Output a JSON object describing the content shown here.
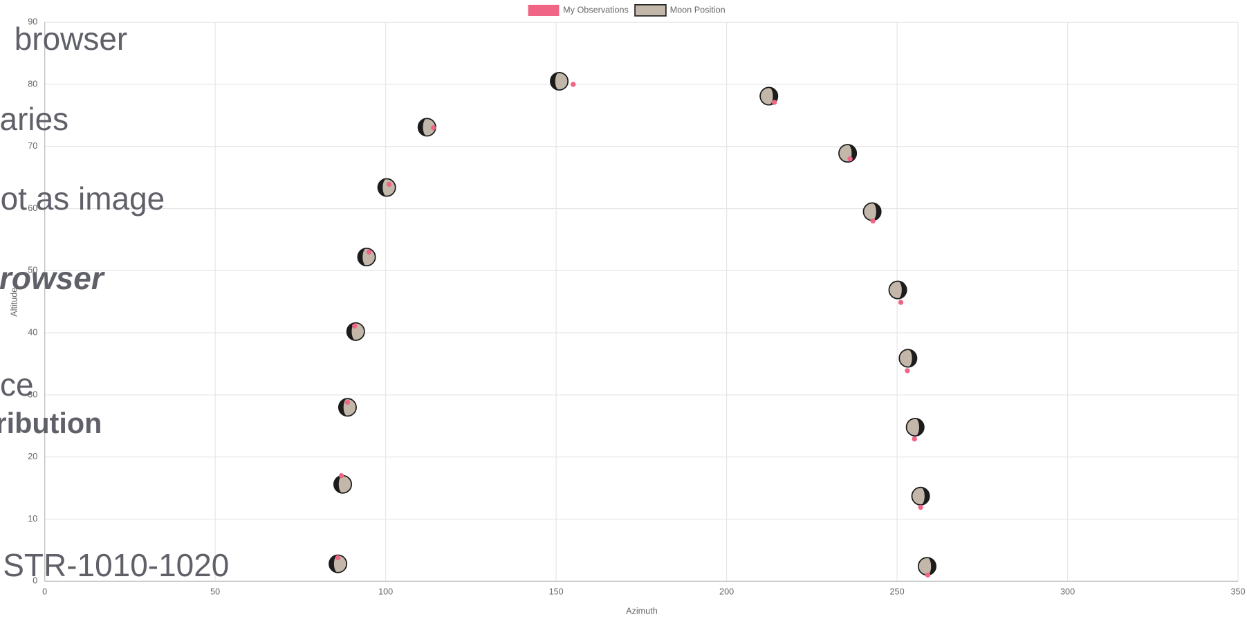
{
  "chart_data": {
    "type": "scatter",
    "x_label": "Azimuth",
    "y_label": "Altitude",
    "xlim": [
      0,
      350
    ],
    "xticks": [
      0,
      50,
      100,
      150,
      200,
      250,
      300,
      350
    ],
    "ylim": [
      0,
      90
    ],
    "yticks": [
      0,
      10,
      20,
      30,
      40,
      50,
      60,
      70,
      80,
      90
    ],
    "grid": true,
    "legend": "top",
    "series": [
      {
        "name": "My Observations",
        "color": "#f06585",
        "x": [
          155.0,
          214.0,
          114.0,
          236.2,
          101.0,
          242.9,
          95.1,
          251.1,
          90.9,
          253.0,
          88.8,
          255.1,
          87.0,
          256.9,
          86.0,
          259.0
        ],
        "values": [
          80.0,
          77.1,
          73.0,
          68.0,
          63.9,
          58.0,
          53.0,
          44.9,
          41.1,
          33.9,
          28.8,
          22.9,
          17.0,
          11.9,
          3.8,
          1.0
        ]
      },
      {
        "name": "Moon Position",
        "color": "#c2b7a8",
        "x": [
          150.9,
          212.4,
          112.1,
          235.5,
          100.3,
          242.7,
          94.4,
          250.2,
          91.2,
          253.2,
          88.8,
          255.3,
          87.4,
          256.9,
          86.0,
          258.8
        ],
        "values": [
          80.5,
          78.1,
          73.1,
          68.9,
          63.4,
          59.5,
          52.2,
          46.9,
          40.2,
          35.9,
          28.0,
          24.8,
          15.6,
          13.7,
          2.8,
          2.4
        ]
      }
    ]
  },
  "overlay": [
    "browser",
    "aries",
    "ot as image",
    "rowser",
    "ce",
    "ribution",
    "STR-1010-1020"
  ]
}
